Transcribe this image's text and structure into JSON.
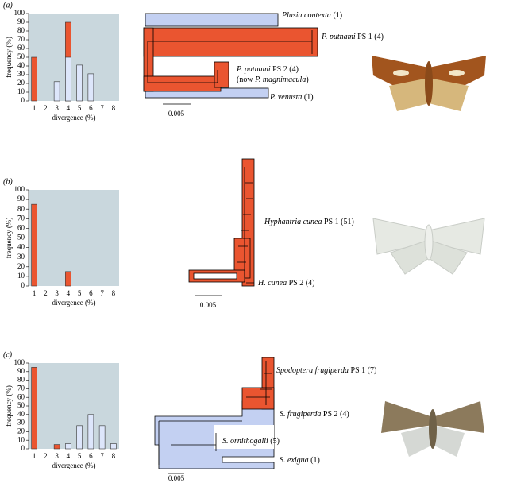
{
  "chart_data": [
    {
      "type": "bar",
      "panel_label": "(a)",
      "xlabel": "divergence (%)",
      "ylabel": "frequency (%)",
      "categories": [
        1,
        2,
        3,
        4,
        5,
        6,
        7,
        8
      ],
      "ylim": [
        0,
        100
      ],
      "yticks": [
        0,
        10,
        20,
        30,
        40,
        50,
        60,
        70,
        80,
        90,
        100
      ],
      "background": "#c9d7dd",
      "series": [
        {
          "color": "#ea5530",
          "values": [
            50,
            null,
            null,
            90,
            null,
            null,
            null,
            null
          ]
        },
        {
          "color": "#dde6fb",
          "values": [
            null,
            null,
            22,
            50,
            41,
            31,
            null,
            null
          ]
        }
      ]
    },
    {
      "type": "bar",
      "panel_label": "(b)",
      "xlabel": "divergence (%)",
      "ylabel": "frequency (%)",
      "categories": [
        1,
        2,
        3,
        4,
        5,
        6,
        7,
        8
      ],
      "ylim": [
        0,
        100
      ],
      "yticks": [
        0,
        10,
        20,
        30,
        40,
        50,
        60,
        70,
        80,
        90,
        100
      ],
      "background": "#c9d7dd",
      "series": [
        {
          "color": "#ea5530",
          "values": [
            85,
            null,
            null,
            15,
            null,
            null,
            null,
            null
          ]
        }
      ]
    },
    {
      "type": "bar",
      "panel_label": "(c)",
      "xlabel": "divergence (%)",
      "ylabel": "frequency (%)",
      "categories": [
        1,
        2,
        3,
        4,
        5,
        6,
        7,
        8
      ],
      "ylim": [
        0,
        100
      ],
      "yticks": [
        0,
        10,
        20,
        30,
        40,
        50,
        60,
        70,
        80,
        90,
        100
      ],
      "background": "#c9d7dd",
      "series": [
        {
          "color": "#ea5530",
          "values": [
            95,
            null,
            5,
            null,
            null,
            null,
            null,
            null
          ]
        },
        {
          "color": "#dde6fb",
          "values": [
            null,
            null,
            null,
            6,
            27,
            40,
            27,
            6
          ]
        }
      ]
    }
  ],
  "trees": [
    {
      "scale": "0.005",
      "labels": [
        [
          {
            "text": "Plusia contexta",
            "italic": true
          },
          {
            "text": " (1)"
          }
        ],
        [
          {
            "text": "P. putnami",
            "italic": true
          },
          {
            "text": " PS 1 (4)"
          }
        ],
        [
          {
            "text": "P. putnami",
            "italic": true
          },
          {
            "text": " PS 2 (4)"
          }
        ],
        [
          {
            "text": "(now "
          },
          {
            "text": "P. magnimacula",
            "italic": true
          },
          {
            "text": ")"
          }
        ],
        [
          {
            "text": "P. venusta",
            "italic": true
          },
          {
            "text": " (1)"
          }
        ]
      ]
    },
    {
      "scale": "0.005",
      "labels": [
        [
          {
            "text": "Hyphantria cunea",
            "italic": true
          },
          {
            "text": " PS 1 (51)"
          }
        ],
        [
          {
            "text": "H. cunea",
            "italic": true
          },
          {
            "text": " PS 2 (4)"
          }
        ]
      ]
    },
    {
      "scale": "0.005",
      "labels": [
        [
          {
            "text": "Spodoptera frugiperda",
            "italic": true
          },
          {
            "text": " PS 1 (7)"
          }
        ],
        [
          {
            "text": "S. frugiperda",
            "italic": true
          },
          {
            "text": " PS 2 (4)"
          }
        ],
        [
          {
            "text": "S. ornithogalli",
            "italic": true
          },
          {
            "text": " (5)"
          }
        ],
        [
          {
            "text": "S. exigua",
            "italic": true
          },
          {
            "text": " (1)"
          }
        ]
      ]
    }
  ]
}
